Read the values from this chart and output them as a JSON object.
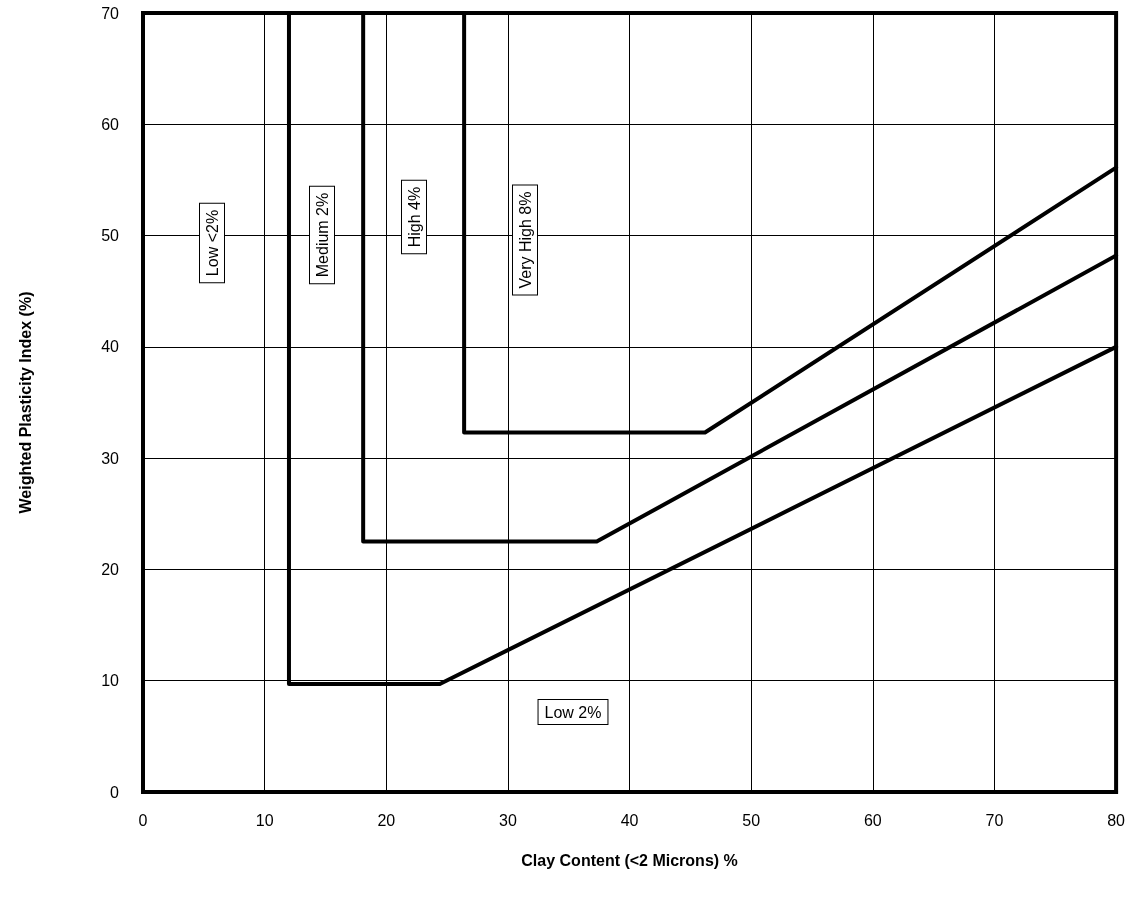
{
  "chart_data": {
    "type": "line",
    "xlabel": "Clay Content (<2 Microns) %",
    "ylabel": "Weighted Plasticity Index (%)",
    "xlim": [
      0,
      80
    ],
    "xticks": [
      0,
      10,
      20,
      30,
      40,
      50,
      60,
      70,
      80
    ],
    "ylim": [
      0,
      70
    ],
    "yticks": [
      0,
      10,
      20,
      30,
      40,
      50,
      60,
      70
    ],
    "grid": true,
    "marker": "none",
    "line_style": "solid",
    "series": [
      {
        "color": "#000000",
        "x": [
          12,
          12,
          24.4,
          80
        ],
        "values": [
          70,
          9.7,
          9.7,
          40
        ]
      },
      {
        "color": "#000000",
        "x": [
          18.1,
          18.1,
          37.3,
          80
        ],
        "values": [
          70,
          22.5,
          22.5,
          48.2
        ]
      },
      {
        "color": "#000000",
        "x": [
          26.4,
          26.4,
          46.2,
          80
        ],
        "values": [
          70,
          32.3,
          32.3,
          56.1
        ]
      }
    ],
    "annotations": [
      "Low <2%",
      "Medium 2%",
      "High 4%",
      "Very High 8%",
      "Low 2%"
    ]
  }
}
